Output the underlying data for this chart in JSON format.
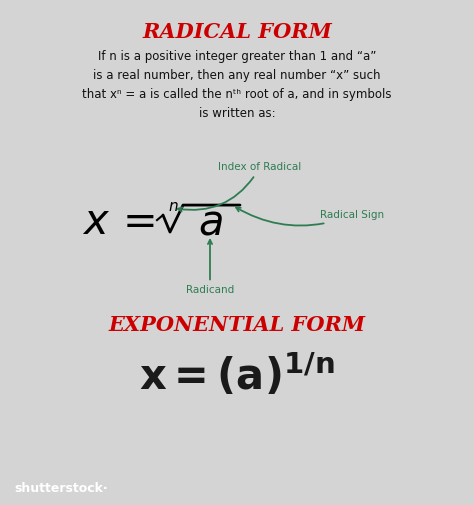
{
  "bg_color": "#d4d4d4",
  "title": "RADICAL FORM",
  "title_color": "#cc0000",
  "title_fontsize": 15,
  "desc_lines": [
    "If n is a positive integer greater than 1 and “a”",
    "is a real number, then any real number “x” such",
    "that xⁿ = a is called the nᵗʰ root of a, and in symbols",
    "is written as:"
  ],
  "desc_fontsize": 8.5,
  "desc_color": "#111111",
  "radical_fontsize": 30,
  "radical_n_fontsize": 11,
  "radical_a_fontsize": 30,
  "exponential_title": "EXPONENTIAL FORM",
  "exp_title_color": "#cc0000",
  "exp_title_fontsize": 15,
  "exp_fontsize": 30,
  "arrow_color": "#2e7d52",
  "label_color": "#2e7d52",
  "label_fontsize": 7.5,
  "footer_bg": "#2b2d30",
  "footer_text": "shutterstock·",
  "footer_fontsize": 9,
  "figsize": [
    4.74,
    5.05
  ],
  "dpi": 100
}
